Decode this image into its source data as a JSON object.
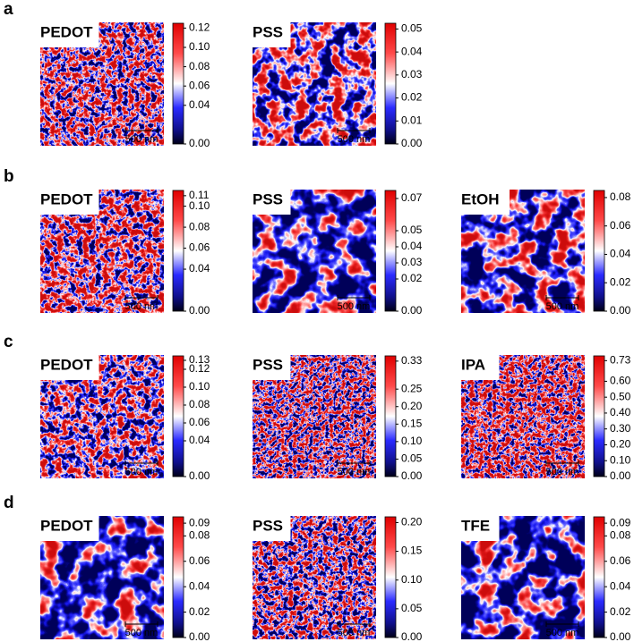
{
  "rows": [
    {
      "label": "a",
      "panels": [
        {
          "title": "PEDOT",
          "scale_bar": "500 nm",
          "colorbar": {
            "lim": [
              0,
              0.125
            ],
            "ticks": [
              {
                "value": 0,
                "label": "0.00"
              },
              {
                "value": 0.04,
                "label": "0.04"
              },
              {
                "value": 0.06,
                "label": "0.06"
              },
              {
                "value": 0.08,
                "label": "0.08"
              },
              {
                "value": 0.1,
                "label": "0.10"
              },
              {
                "value": 0.12,
                "label": "0.12"
              }
            ]
          }
        },
        {
          "title": "PSS",
          "scale_bar": "500 nm",
          "colorbar": {
            "lim": [
              0,
              0.0525
            ],
            "ticks": [
              {
                "value": 0,
                "label": "0.00"
              },
              {
                "value": 0.01,
                "label": "0.01"
              },
              {
                "value": 0.02,
                "label": "0.02"
              },
              {
                "value": 0.03,
                "label": "0.03"
              },
              {
                "value": 0.04,
                "label": "0.04"
              },
              {
                "value": 0.05,
                "label": "0.05"
              }
            ]
          }
        }
      ]
    },
    {
      "label": "b",
      "panels": [
        {
          "title": "PEDOT",
          "scale_bar": "500 nm",
          "colorbar": {
            "lim": [
              0,
              0.115
            ],
            "ticks": [
              {
                "value": 0,
                "label": "0.00"
              },
              {
                "value": 0.04,
                "label": "0.04"
              },
              {
                "value": 0.06,
                "label": "0.06"
              },
              {
                "value": 0.08,
                "label": "0.08"
              },
              {
                "value": 0.1,
                "label": "0.10"
              },
              {
                "value": 0.11,
                "label": "0.11"
              }
            ]
          }
        },
        {
          "title": "PSS",
          "scale_bar": "500 nm",
          "colorbar": {
            "lim": [
              0,
              0.075
            ],
            "ticks": [
              {
                "value": 0,
                "label": "0.00"
              },
              {
                "value": 0.02,
                "label": "0.02"
              },
              {
                "value": 0.03,
                "label": "0.03"
              },
              {
                "value": 0.04,
                "label": "0.04"
              },
              {
                "value": 0.05,
                "label": "0.05"
              },
              {
                "value": 0.07,
                "label": "0.07"
              }
            ]
          }
        },
        {
          "title": "EtOH",
          "scale_bar": "500 nm",
          "colorbar": {
            "lim": [
              0,
              0.085
            ],
            "ticks": [
              {
                "value": 0,
                "label": "0.00"
              },
              {
                "value": 0.02,
                "label": "0.02"
              },
              {
                "value": 0.04,
                "label": "0.04"
              },
              {
                "value": 0.06,
                "label": "0.06"
              },
              {
                "value": 0.08,
                "label": "0.08"
              }
            ]
          }
        }
      ]
    },
    {
      "label": "c",
      "panels": [
        {
          "title": "PEDOT",
          "scale_bar": "500 nm",
          "colorbar": {
            "lim": [
              0,
              0.135
            ],
            "ticks": [
              {
                "value": 0,
                "label": "0.00"
              },
              {
                "value": 0.04,
                "label": "0.04"
              },
              {
                "value": 0.06,
                "label": "0.06"
              },
              {
                "value": 0.08,
                "label": "0.08"
              },
              {
                "value": 0.1,
                "label": "0.10"
              },
              {
                "value": 0.12,
                "label": "0.12"
              },
              {
                "value": 0.13,
                "label": "0.13"
              }
            ]
          }
        },
        {
          "title": "PSS",
          "scale_bar": "500 nm",
          "colorbar": {
            "lim": [
              0,
              0.345
            ],
            "ticks": [
              {
                "value": 0,
                "label": "0.00"
              },
              {
                "value": 0.05,
                "label": "0.05"
              },
              {
                "value": 0.1,
                "label": "0.10"
              },
              {
                "value": 0.15,
                "label": "0.15"
              },
              {
                "value": 0.2,
                "label": "0.20"
              },
              {
                "value": 0.25,
                "label": "0.25"
              },
              {
                "value": 0.33,
                "label": "0.33"
              }
            ]
          }
        },
        {
          "title": "IPA",
          "scale_bar": "500 nm",
          "colorbar": {
            "lim": [
              0,
              0.76
            ],
            "ticks": [
              {
                "value": 0,
                "label": "0.00"
              },
              {
                "value": 0.1,
                "label": "0.10"
              },
              {
                "value": 0.2,
                "label": "0.20"
              },
              {
                "value": 0.3,
                "label": "0.30"
              },
              {
                "value": 0.4,
                "label": "0.40"
              },
              {
                "value": 0.5,
                "label": "0.50"
              },
              {
                "value": 0.6,
                "label": "0.60"
              },
              {
                "value": 0.73,
                "label": "0.73"
              }
            ]
          }
        }
      ]
    },
    {
      "label": "d",
      "panels": [
        {
          "title": "PEDOT",
          "scale_bar": "500 nm",
          "colorbar": {
            "lim": [
              0,
              0.095
            ],
            "ticks": [
              {
                "value": 0,
                "label": "0.00"
              },
              {
                "value": 0.02,
                "label": "0.02"
              },
              {
                "value": 0.04,
                "label": "0.04"
              },
              {
                "value": 0.06,
                "label": "0.06"
              },
              {
                "value": 0.08,
                "label": "0.08"
              },
              {
                "value": 0.09,
                "label": "0.09"
              }
            ]
          }
        },
        {
          "title": "PSS",
          "scale_bar": "500 nm",
          "colorbar": {
            "lim": [
              0,
              0.21
            ],
            "ticks": [
              {
                "value": 0,
                "label": "0.00"
              },
              {
                "value": 0.05,
                "label": "0.05"
              },
              {
                "value": 0.1,
                "label": "0.10"
              },
              {
                "value": 0.15,
                "label": "0.15"
              },
              {
                "value": 0.2,
                "label": "0.20"
              }
            ]
          }
        },
        {
          "title": "TFE",
          "scale_bar": "500 nm",
          "colorbar": {
            "lim": [
              0,
              0.095
            ],
            "ticks": [
              {
                "value": 0,
                "label": "0.00"
              },
              {
                "value": 0.02,
                "label": "0.02"
              },
              {
                "value": 0.04,
                "label": "0.04"
              },
              {
                "value": 0.06,
                "label": "0.06"
              },
              {
                "value": 0.08,
                "label": "0.08"
              },
              {
                "value": 0.09,
                "label": "0.09"
              }
            ]
          }
        }
      ]
    }
  ]
}
